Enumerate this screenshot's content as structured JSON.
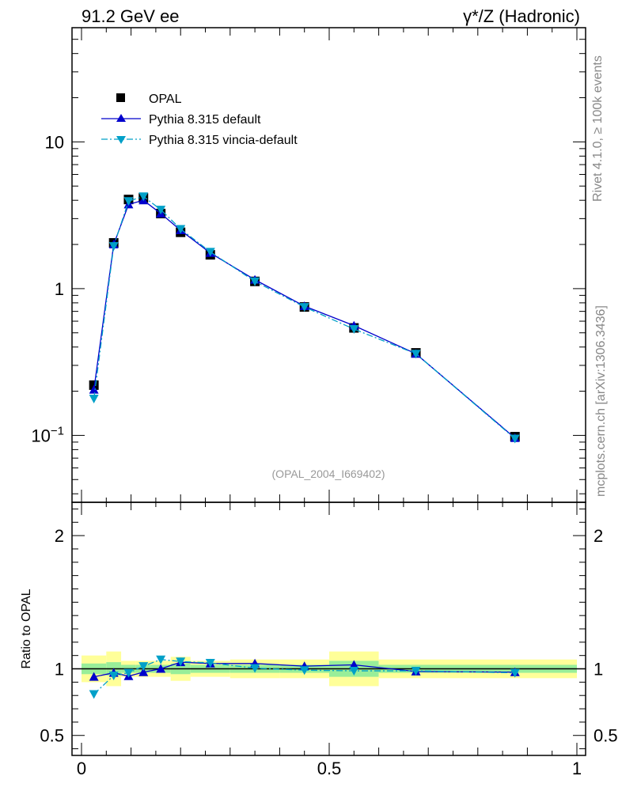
{
  "header": {
    "left_title": "91.2 GeV ee",
    "right_title": "γ*/Z (Hadronic)"
  },
  "side_labels": {
    "rivet": "Rivet 4.1.0, ≥ 100k events",
    "mcplots": "mcplots.cern.ch [arXiv:1306.3436]"
  },
  "analysis_ref": "(OPAL_2004_I669402)",
  "chart_data": {
    "type": "line",
    "title": "",
    "xlabel": "",
    "main_ylabel": "",
    "ratio_ylabel": "Ratio to OPAL",
    "xlim": [
      0,
      1
    ],
    "main_ylim": [
      0.035,
      60
    ],
    "main_yscale": "log",
    "ratio_ylim": [
      0.35,
      2.25
    ],
    "x_ticks": [
      {
        "value": 0,
        "label": "0"
      },
      {
        "value": 0.5,
        "label": "0.5"
      },
      {
        "value": 1,
        "label": "1"
      }
    ],
    "main_y_ticks": [
      {
        "value": 0.1,
        "label": "10−1"
      },
      {
        "value": 1,
        "label": "1"
      },
      {
        "value": 10,
        "label": "10"
      }
    ],
    "ratio_y_ticks": [
      {
        "value": 0.5,
        "label": "0.5"
      },
      {
        "value": 1,
        "label": "1"
      },
      {
        "value": 2,
        "label": "2"
      }
    ],
    "x": [
      0.025,
      0.065,
      0.095,
      0.125,
      0.16,
      0.2,
      0.26,
      0.35,
      0.45,
      0.55,
      0.675,
      0.875
    ],
    "bin_edges": [
      0.0,
      0.05,
      0.08,
      0.11,
      0.14,
      0.18,
      0.22,
      0.3,
      0.4,
      0.5,
      0.6,
      0.75,
      1.0
    ],
    "data_band_halfwidth_yellow": [
      0.1,
      0.13,
      0.06,
      0.06,
      0.06,
      0.09,
      0.06,
      0.07,
      0.07,
      0.13,
      0.07,
      0.07
    ],
    "data_band_halfwidth_green": [
      0.04,
      0.05,
      0.03,
      0.03,
      0.03,
      0.04,
      0.03,
      0.03,
      0.03,
      0.06,
      0.03,
      0.03
    ],
    "series": [
      {
        "name": "OPAL",
        "style": "data",
        "color": "#000000",
        "values": [
          0.22,
          2.05,
          4.05,
          4.15,
          3.25,
          2.42,
          1.7,
          1.12,
          0.75,
          0.54,
          0.365,
          0.098
        ],
        "ratio": [
          1,
          1,
          1,
          1,
          1,
          1,
          1,
          1,
          1,
          1,
          1,
          1
        ]
      },
      {
        "name": "Pythia 8.315 default",
        "style": "solid",
        "color": "#0000cc",
        "values": [
          0.205,
          2.0,
          3.75,
          4.0,
          3.25,
          2.5,
          1.75,
          1.15,
          0.76,
          0.56,
          0.36,
          0.096
        ],
        "ratio": [
          0.94,
          0.97,
          0.945,
          0.975,
          1.0,
          1.05,
          1.04,
          1.04,
          1.02,
          1.03,
          0.98,
          0.975
        ]
      },
      {
        "name": "Pythia 8.315 vincia-default",
        "style": "dashdot",
        "color": "#00a0c8",
        "values": [
          0.178,
          1.95,
          3.95,
          4.25,
          3.45,
          2.55,
          1.78,
          1.12,
          0.75,
          0.53,
          0.36,
          0.095
        ],
        "ratio": [
          0.81,
          0.95,
          0.97,
          1.02,
          1.07,
          1.055,
          1.045,
          1.005,
          0.99,
          0.985,
          0.985,
          0.97
        ]
      }
    ]
  }
}
